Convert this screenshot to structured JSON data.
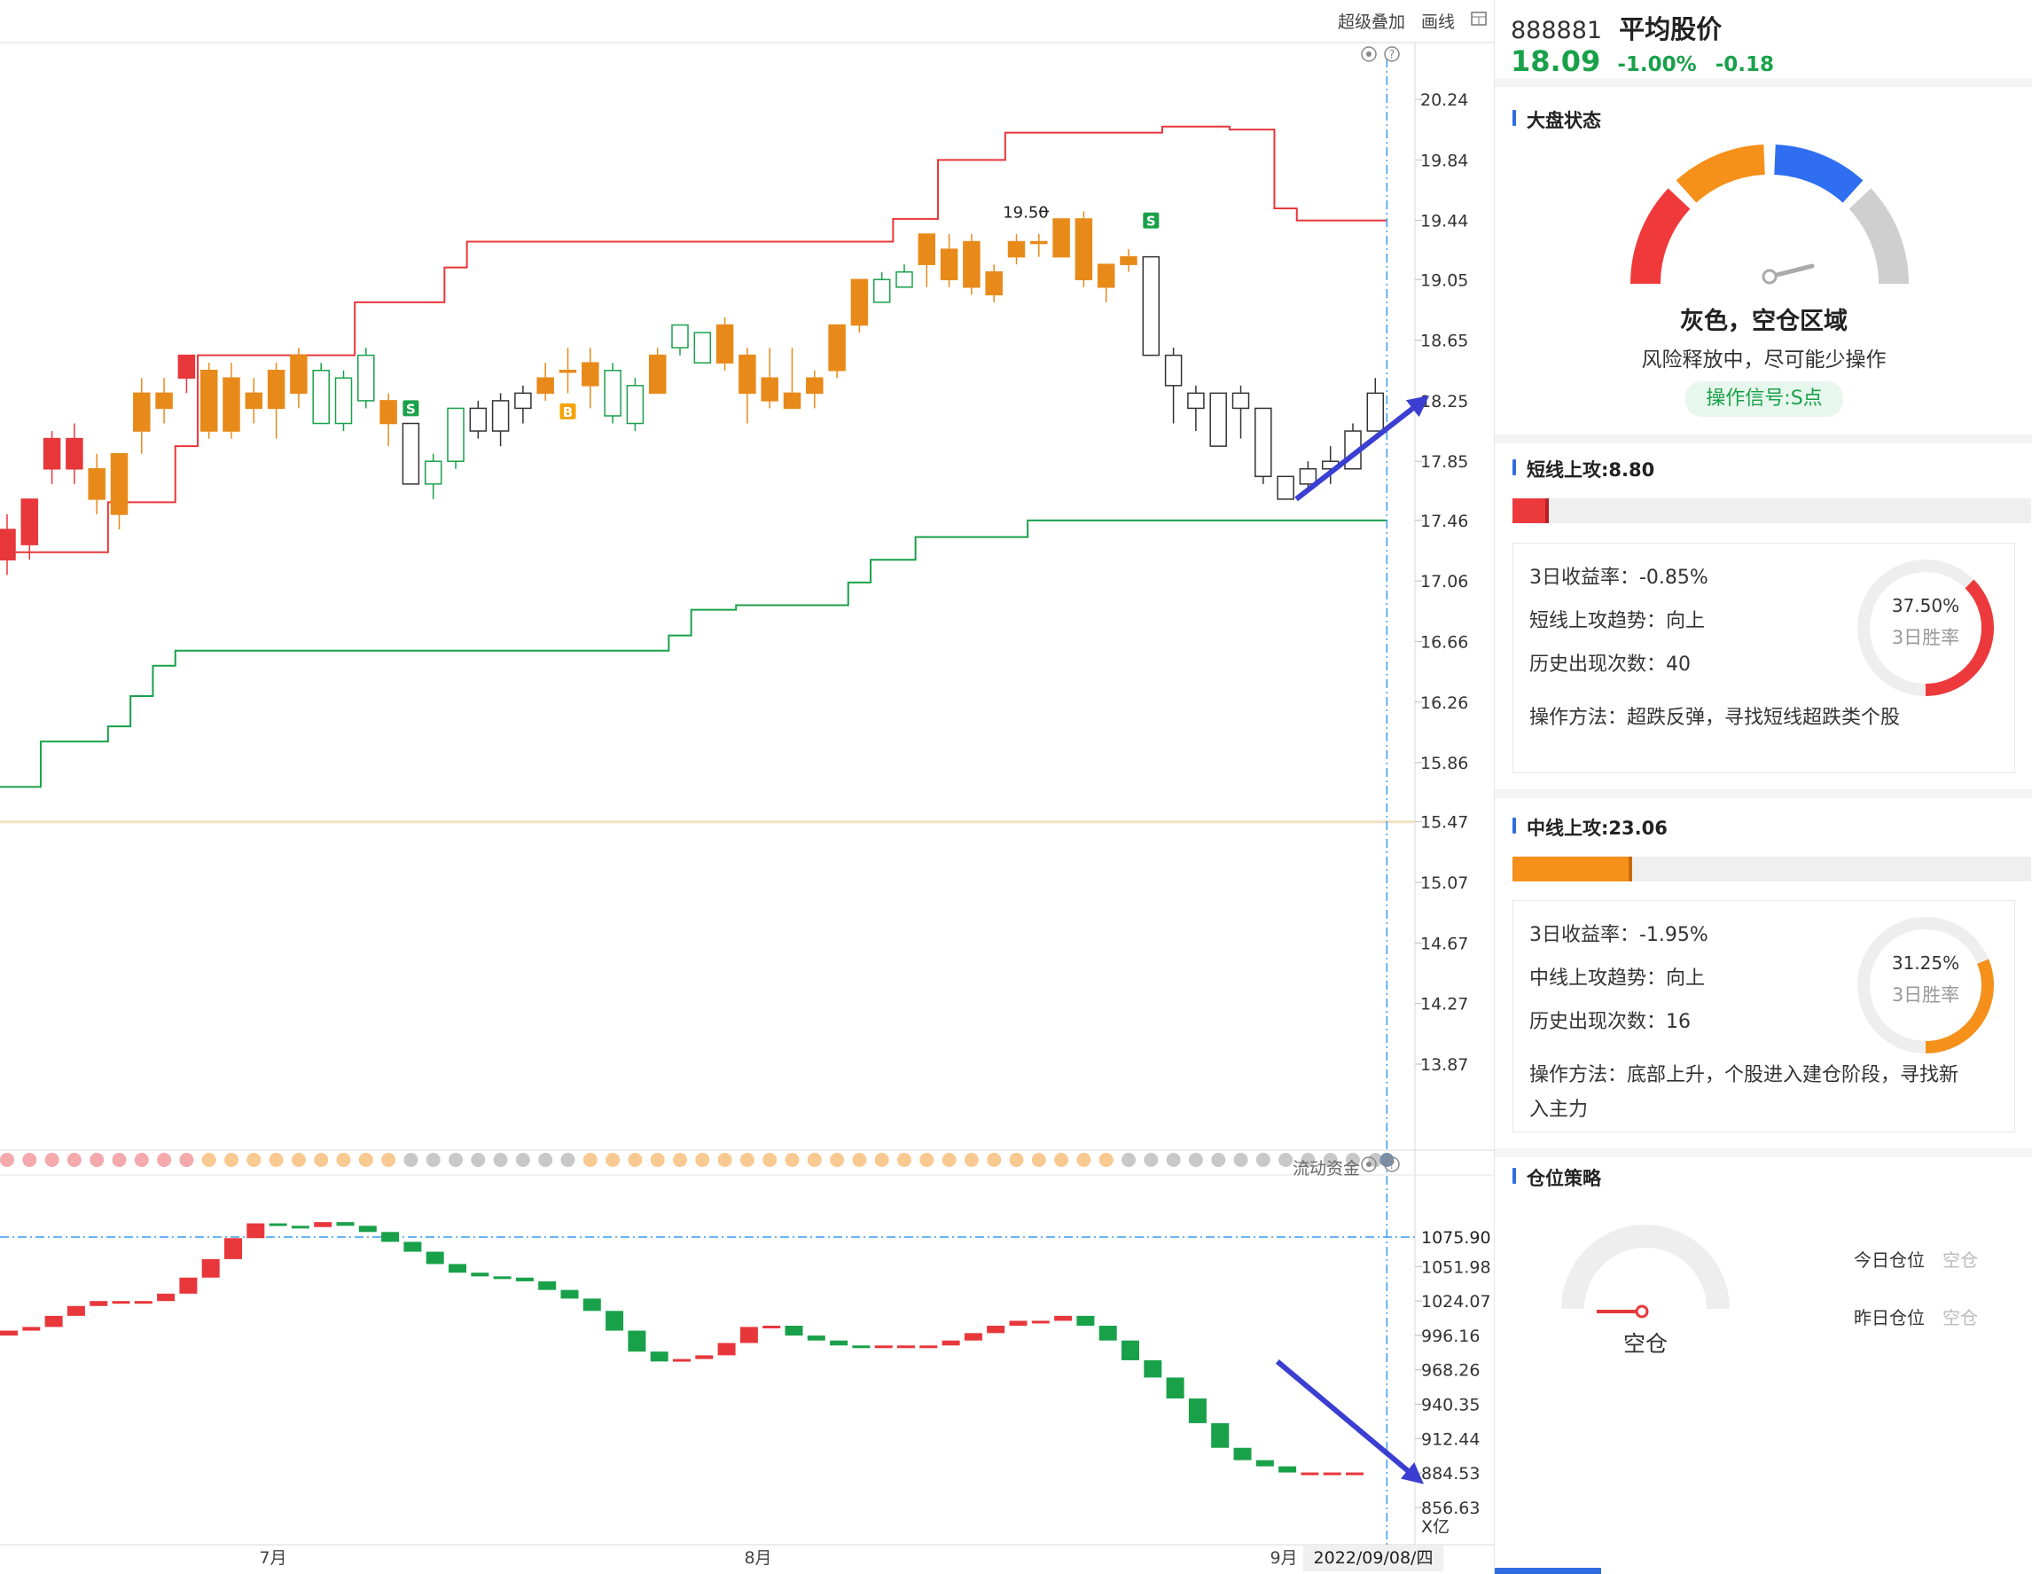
{
  "toolbar": {
    "overlay_label": "超级叠加",
    "draw_label": "画线"
  },
  "stock": {
    "code": "888881",
    "name": "平均股价",
    "price": "18.09",
    "change_pct": "-1.00%",
    "change": "-0.18"
  },
  "main_chart": {
    "y_ticks": [
      "20.24",
      "19.84",
      "19.44",
      "19.05",
      "18.65",
      "18.25",
      "17.85",
      "17.46",
      "17.06",
      "16.66",
      "16.26",
      "15.86",
      "15.47",
      "15.07",
      "14.67",
      "14.27",
      "13.87"
    ],
    "price_annotation": "19.50",
    "signal_s": "S",
    "signal_b": "B"
  },
  "sub_chart": {
    "title": "流动资金",
    "highlight_value": "1075.90",
    "y_ticks": [
      "1051.98",
      "1024.07",
      "996.16",
      "968.26",
      "940.35",
      "912.44",
      "884.53",
      "856.63"
    ],
    "unit": "X亿"
  },
  "x_axis": {
    "labels": [
      "7月",
      "8月",
      "9月"
    ],
    "current_date": "2022/09/08/四"
  },
  "colors": {
    "up": "#e8373b",
    "down": "#19a14a",
    "orange": "#e88a1a",
    "arrow": "#3b3fd1",
    "cursor": "#3a9cf0"
  },
  "panel": {
    "market": {
      "title": "大盘状态",
      "state": "灰色，空仓区域",
      "desc": "风险释放中，尽可能少操作",
      "signal": "操作信号:S点"
    },
    "short": {
      "title": "短线上攻:8.80",
      "progress": 0.07,
      "return3": "3日收益率：-0.85%",
      "trend": "短线上攻趋势：向上",
      "count": "历史出现次数：40",
      "method": "操作方法：超跌反弹，寻找短线超跌类个股",
      "rate": "37.50%",
      "rate_fraction": 0.375,
      "rate_label": "3日胜率"
    },
    "mid": {
      "title": "中线上攻:23.06",
      "progress": 0.23,
      "return3": "3日收益率：-1.95%",
      "trend": "中线上攻趋势：向上",
      "count": "历史出现次数：16",
      "method1": "操作方法：底部上升，个股进入建仓阶段，寻找新",
      "method2": "入主力",
      "rate": "31.25%",
      "rate_fraction": 0.3125,
      "rate_label": "3日胜率"
    },
    "position": {
      "title": "仓位策略",
      "gauge_label": "空仓",
      "today_label": "今日仓位",
      "today_value": "空仓",
      "yesterday_label": "昨日仓位",
      "yesterday_value": "空仓"
    }
  }
}
